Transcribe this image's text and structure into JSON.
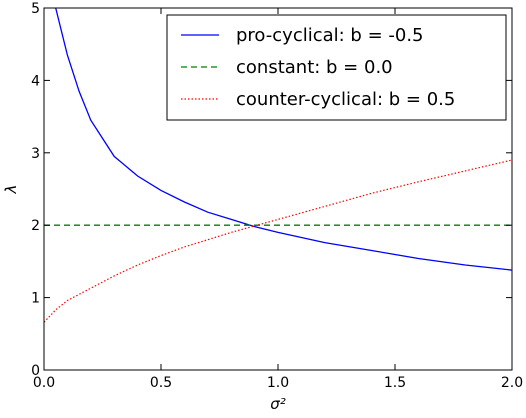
{
  "chart_data": {
    "type": "line",
    "xlabel": "σ²",
    "ylabel": "λ",
    "xlim": [
      0.0,
      2.0
    ],
    "ylim": [
      0,
      5
    ],
    "x_ticks": [
      "0.0",
      "0.5",
      "1.0",
      "1.5",
      "2.0"
    ],
    "y_ticks": [
      "0",
      "1",
      "2",
      "3",
      "4",
      "5"
    ],
    "grid": false,
    "legend_position": "top-right",
    "series": [
      {
        "name": "pro-cyclical: b = -0.5",
        "color": "#0000ff",
        "style": "solid",
        "x": [
          0.05,
          0.1,
          0.15,
          0.2,
          0.3,
          0.4,
          0.5,
          0.6,
          0.7,
          0.8,
          0.9,
          1.0,
          1.2,
          1.4,
          1.6,
          1.8,
          2.0
        ],
        "y": [
          5.0,
          4.35,
          3.85,
          3.45,
          2.95,
          2.68,
          2.48,
          2.32,
          2.18,
          2.08,
          1.98,
          1.9,
          1.76,
          1.65,
          1.54,
          1.45,
          1.38
        ]
      },
      {
        "name": "constant: b = 0.0",
        "color": "#008000",
        "style": "dashed",
        "x": [
          0.0,
          2.0
        ],
        "y": [
          2.0,
          2.0
        ]
      },
      {
        "name": "counter-cyclical: b = 0.5",
        "color": "#ff0000",
        "style": "dotted",
        "x": [
          0.0,
          0.05,
          0.1,
          0.2,
          0.3,
          0.4,
          0.5,
          0.6,
          0.7,
          0.8,
          0.9,
          1.0,
          1.2,
          1.4,
          1.6,
          1.8,
          2.0
        ],
        "y": [
          0.66,
          0.83,
          0.96,
          1.13,
          1.3,
          1.45,
          1.58,
          1.7,
          1.8,
          1.9,
          1.99,
          2.08,
          2.26,
          2.44,
          2.6,
          2.75,
          2.9
        ]
      }
    ]
  }
}
